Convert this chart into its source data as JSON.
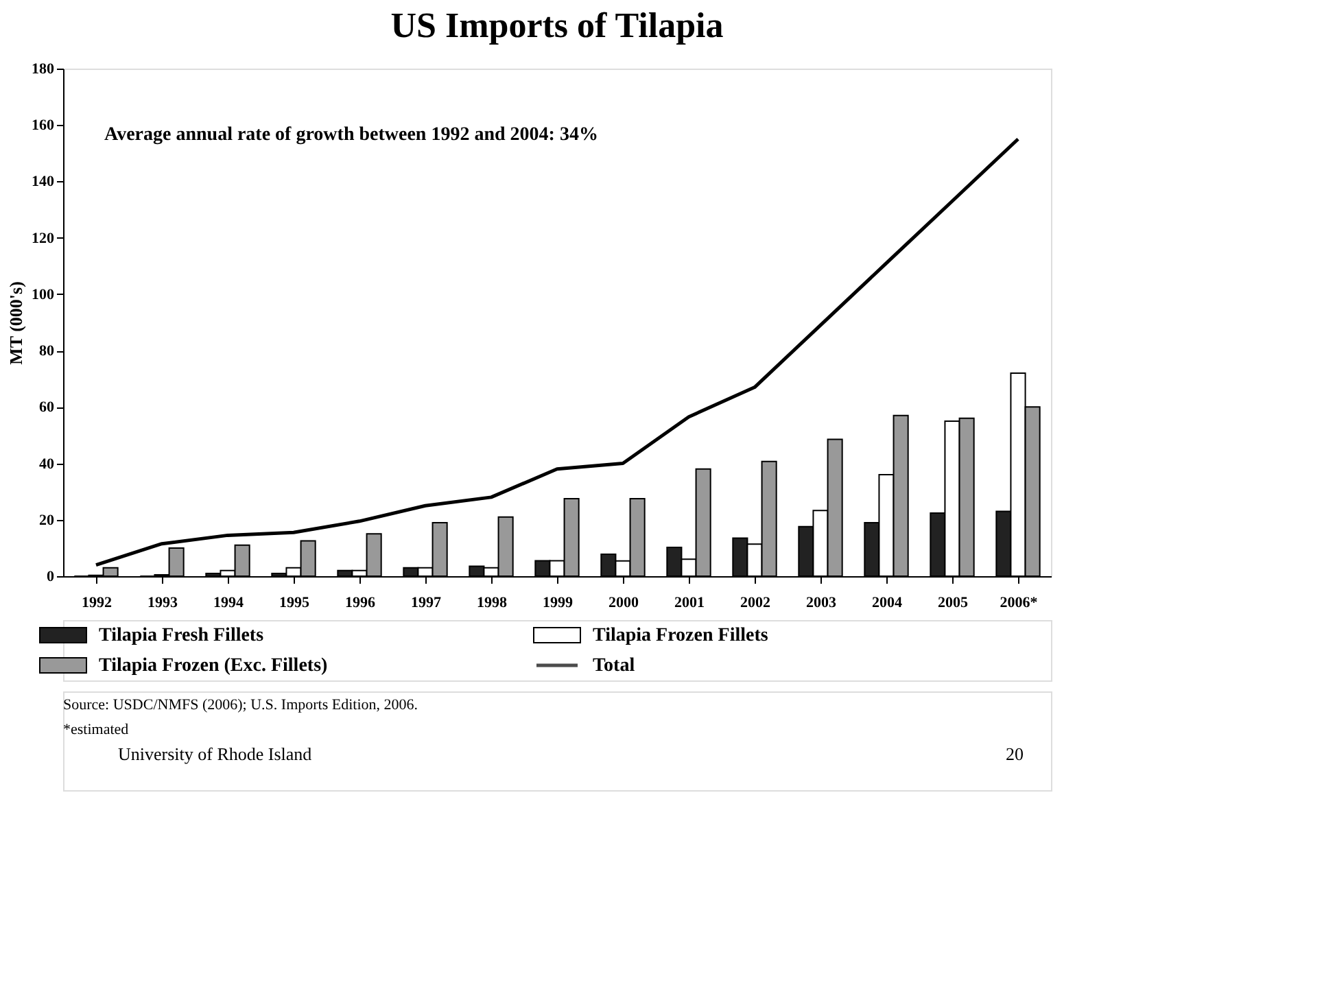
{
  "chart_data": {
    "type": "bar",
    "title": "US Imports of Tilapia",
    "ylabel": "MT (000's)",
    "categories": [
      "1992",
      "1993",
      "1994",
      "1995",
      "1996",
      "1997",
      "1998",
      "1999",
      "2000",
      "2001",
      "2002",
      "2003",
      "2004",
      "2005",
      "2006*"
    ],
    "series": [
      {
        "name": "Tilapia Fresh Fillets",
        "color": "#222222",
        "values": [
          null,
          null,
          1,
          1,
          2,
          3,
          3.5,
          5.5,
          7.8,
          10.2,
          13.5,
          17.6,
          19,
          22.4,
          23
        ]
      },
      {
        "name": "Tilapia Frozen Fillets",
        "color": "#ffffff",
        "values": [
          0.3,
          0.5,
          2,
          3,
          2,
          3,
          3,
          5.5,
          5.4,
          6,
          11.4,
          23.3,
          36,
          55,
          72
        ]
      },
      {
        "name": "Tilapia Frozen (Exc. Fillets)",
        "color": "#999999",
        "values": [
          3,
          10,
          11,
          12.5,
          15,
          19,
          21,
          27.5,
          27.5,
          38,
          40.7,
          48.5,
          57,
          56,
          60
        ]
      },
      {
        "name": "Total",
        "type": "line",
        "color": "#000000",
        "values": [
          4,
          11.5,
          14.5,
          15.5,
          19.5,
          25,
          28,
          38,
          40,
          56.5,
          67,
          89,
          111,
          133,
          155
        ]
      }
    ],
    "ylim": [
      0,
      180
    ],
    "yticks": [
      0,
      20,
      40,
      60,
      80,
      100,
      120,
      140,
      160,
      180
    ],
    "grid": false,
    "legend": "bottom",
    "annotations": [
      "Average annual rate of growth between 1992 and 2004: 34%",
      "Source:  USDC/NMFS (2006); U.S. Imports Edition, 2006.",
      "*estimated",
      "University of Rhode Island",
      "20"
    ]
  }
}
